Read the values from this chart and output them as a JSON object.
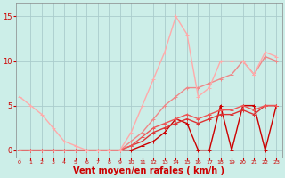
{
  "bg_color": "#cceee8",
  "grid_color": "#aacccc",
  "xlabel": "Vent moyen/en rafales ( km/h )",
  "xlabel_color": "#cc0000",
  "xlabel_fontsize": 7,
  "ytick_color": "#cc0000",
  "xtick_color": "#cc0000",
  "yticks": [
    0,
    5,
    10,
    15
  ],
  "xticks": [
    0,
    1,
    2,
    3,
    4,
    5,
    6,
    7,
    8,
    9,
    10,
    11,
    12,
    13,
    14,
    15,
    16,
    17,
    18,
    19,
    20,
    21,
    22,
    23
  ],
  "xlim": [
    -0.3,
    23.5
  ],
  "ylim": [
    -0.8,
    16.5
  ],
  "series": [
    {
      "x": [
        0,
        1,
        2,
        3,
        4,
        5,
        6,
        7,
        8,
        9,
        10,
        11,
        12,
        13,
        14,
        15,
        16,
        17,
        18,
        19,
        20,
        21,
        22,
        23
      ],
      "y": [
        0,
        0,
        0,
        0,
        0,
        0,
        0,
        0,
        0,
        0,
        0,
        0.5,
        1,
        2,
        3.5,
        3,
        0,
        0,
        5,
        0,
        5,
        5,
        0,
        5
      ],
      "color": "#cc0000",
      "lw": 1.0,
      "marker": "+"
    },
    {
      "x": [
        0,
        1,
        2,
        3,
        4,
        5,
        6,
        7,
        8,
        9,
        10,
        11,
        12,
        13,
        14,
        15,
        16,
        17,
        18,
        19,
        20,
        21,
        22,
        23
      ],
      "y": [
        0,
        0,
        0,
        0,
        0,
        0,
        0,
        0,
        0,
        0,
        0.5,
        1,
        2,
        2.5,
        3,
        3.5,
        3,
        3.5,
        4,
        4,
        4.5,
        4,
        5,
        5
      ],
      "color": "#dd3333",
      "lw": 1.0,
      "marker": "+"
    },
    {
      "x": [
        0,
        1,
        2,
        3,
        4,
        5,
        6,
        7,
        8,
        9,
        10,
        11,
        12,
        13,
        14,
        15,
        16,
        17,
        18,
        19,
        20,
        21,
        22,
        23
      ],
      "y": [
        0,
        0,
        0,
        0,
        0,
        0,
        0,
        0,
        0,
        0,
        0.5,
        1.5,
        2.5,
        3,
        3.5,
        4,
        3.5,
        4,
        4.5,
        4.5,
        5,
        4.5,
        5,
        5
      ],
      "color": "#ee5555",
      "lw": 1.0,
      "marker": "+"
    },
    {
      "x": [
        0,
        1,
        2,
        3,
        4,
        5,
        6,
        7,
        8,
        9,
        10,
        11,
        12,
        13,
        14,
        15,
        16,
        17,
        18,
        19,
        20,
        21,
        22,
        23
      ],
      "y": [
        0,
        0,
        0,
        0,
        0,
        0,
        0,
        0,
        0,
        0,
        1,
        2,
        3.5,
        5,
        6,
        7,
        7,
        7.5,
        8,
        8.5,
        10,
        8.5,
        10.5,
        10
      ],
      "color": "#ee8888",
      "lw": 1.0,
      "marker": "+"
    },
    {
      "x": [
        0,
        1,
        2,
        3,
        4,
        5,
        6,
        7,
        8,
        9,
        10,
        11,
        12,
        13,
        14,
        15,
        16,
        17,
        18,
        19,
        20,
        21,
        22,
        23
      ],
      "y": [
        6,
        5,
        4,
        2.5,
        1,
        0.5,
        0,
        0,
        0,
        0,
        2,
        5,
        8,
        11,
        15,
        13,
        6,
        7,
        10,
        10,
        10,
        8.5,
        11,
        10.5
      ],
      "color": "#ffaaaa",
      "lw": 1.0,
      "marker": "+"
    }
  ]
}
